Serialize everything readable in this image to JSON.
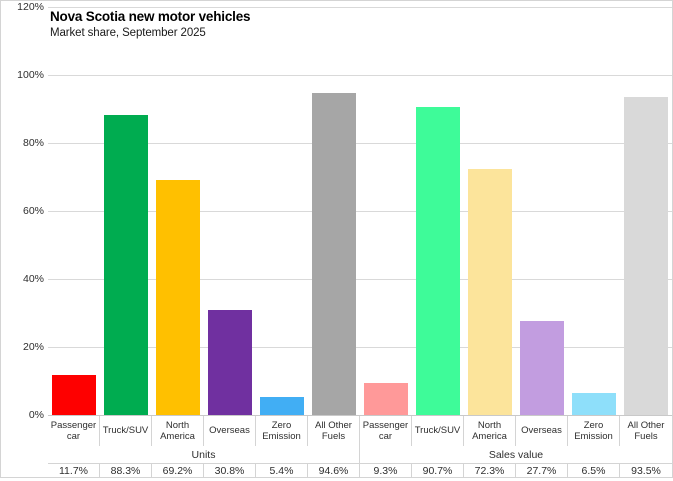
{
  "header": {
    "title": "Nova Scotia new motor vehicles",
    "subtitle": "Market share, September 2025"
  },
  "chart_data": {
    "type": "bar",
    "title": "Nova Scotia new motor vehicles",
    "subtitle": "Market share, September 2025",
    "xlabel": "",
    "ylabel": "",
    "ylim": [
      0,
      120
    ],
    "yticks": [
      0,
      20,
      40,
      60,
      80,
      100,
      120
    ],
    "ytick_labels": [
      "0%",
      "20%",
      "40%",
      "60%",
      "80%",
      "100%",
      "120%"
    ],
    "grid": "horizontal",
    "legend_position": "none",
    "categories": [
      "Passenger car",
      "Truck/SUV",
      "North America",
      "Overseas",
      "Zero Emission",
      "All Other Fuels"
    ],
    "groups": [
      {
        "label": "Units",
        "series_note": "left cluster of 6 bars",
        "values": [
          11.7,
          88.3,
          69.2,
          30.8,
          5.4,
          94.6
        ],
        "display_values": [
          "11.7%",
          "88.3%",
          "69.2%",
          "30.8%",
          "5.4%",
          "94.6%"
        ],
        "colors": [
          "#fe0000",
          "#00ac50",
          "#ffc000",
          "#7030a0",
          "#41aef4",
          "#a6a6a6"
        ]
      },
      {
        "label": "Sales value",
        "series_note": "right cluster of 6 bars",
        "values": [
          9.3,
          90.7,
          72.3,
          27.7,
          6.5,
          93.5
        ],
        "display_values": [
          "9.3%",
          "90.7%",
          "72.3%",
          "27.7%",
          "6.5%",
          "93.5%"
        ],
        "colors": [
          "#ff9999",
          "#3efb99",
          "#fce49b",
          "#c29de0",
          "#8edffa",
          "#d9d9d9"
        ]
      }
    ]
  },
  "colors": {
    "gridline": "#d9d9d9",
    "frame_border": "#d4d4d4",
    "text": "#2e2e2e",
    "title_text": "#000000"
  }
}
